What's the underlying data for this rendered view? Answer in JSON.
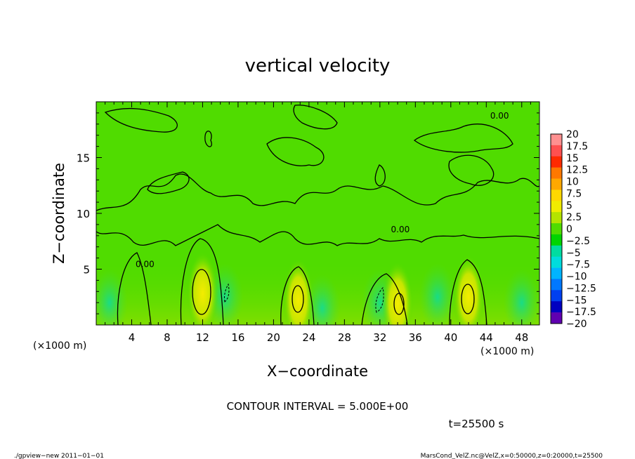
{
  "chart_data": {
    "type": "heatmap",
    "title": "vertical velocity",
    "xlabel": "X−coordinate",
    "ylabel": "Z−coordinate",
    "x_unit_left": "(×1000 m)",
    "x_unit_right": "(×1000 m)",
    "xlim": [
      0,
      50
    ],
    "ylim": [
      0,
      20
    ],
    "x_ticks": [
      4,
      8,
      12,
      16,
      20,
      24,
      28,
      32,
      36,
      40,
      44,
      48
    ],
    "y_ticks": [
      5,
      10,
      15
    ],
    "contour_interval_label": "CONTOUR INTERVAL = 5.000E+00",
    "time_label": "t=25500 s",
    "colorbar": {
      "levels": [
        "20",
        "17.5",
        "15",
        "12.5",
        "10",
        "7.5",
        "5",
        "2.5",
        "0",
        "−2.5",
        "−5",
        "−7.5",
        "−10",
        "−12.5",
        "−15",
        "−17.5",
        "−20"
      ],
      "colors": [
        "#ff9090",
        "#ff5050",
        "#ff2a00",
        "#ff7800",
        "#ffa800",
        "#ffd800",
        "#f0ec00",
        "#b4e400",
        "#50dc00",
        "#00d400",
        "#00dca0",
        "#00dcdc",
        "#00b4ff",
        "#0078ff",
        "#0040f0",
        "#0000c0",
        "#6000b0"
      ]
    },
    "updraft_cores": [
      {
        "x": 12,
        "z": 2.8,
        "label": ""
      },
      {
        "x": 22.8,
        "z": 2.2,
        "label": ""
      },
      {
        "x": 34,
        "z": 1.9,
        "label": ""
      },
      {
        "x": 42,
        "z": 2.5,
        "label": ""
      }
    ],
    "contour_labels": [
      {
        "x": 5.5,
        "z": 5.2,
        "text": "0.00"
      },
      {
        "x": 45.5,
        "z": 18.5,
        "text": "0.00"
      },
      {
        "x": 34.3,
        "z": 8.3,
        "text": "0.00"
      }
    ]
  },
  "footer": {
    "left": "./gpview−new   2011−01−01",
    "right": "MarsCond_VelZ.nc@VelZ,x=0:50000,z=0:20000,t=25500"
  }
}
